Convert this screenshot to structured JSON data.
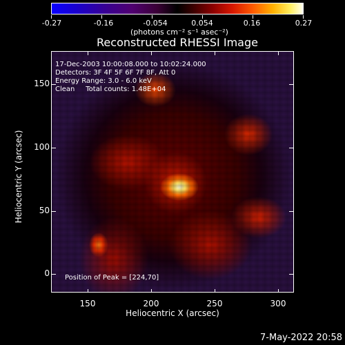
{
  "colorbar": {
    "tick_labels": [
      "-0.27",
      "-0.16",
      "-0.054",
      "0.054",
      "0.16",
      "0.27"
    ],
    "units": "(photons cm⁻² s⁻¹ asec⁻²)",
    "colors": {
      "low": "#0a00ff",
      "mid": "#000000",
      "high": "#fffff0"
    }
  },
  "title": "Reconstructed RHESSI Image",
  "info_lines": [
    "17-Dec-2003 10:00:08.000 to 10:02:24.000",
    "Detectors: 3F 4F 5F 6F 7F 8F, Att 0",
    "Energy Range: 3.0 - 6.0 keV",
    "Clean     Total counts: 1.48E+04"
  ],
  "peak_text": "Position of Peak = [224,70]",
  "x_axis": {
    "label": "Heliocentric X (arcsec)",
    "ticks": [
      "150",
      "200",
      "250",
      "300"
    ]
  },
  "y_axis": {
    "label": "Heliocentric Y (arcsec)",
    "ticks": [
      "150",
      "100",
      "50",
      "0"
    ]
  },
  "timestamp": "7-May-2022 20:58"
}
